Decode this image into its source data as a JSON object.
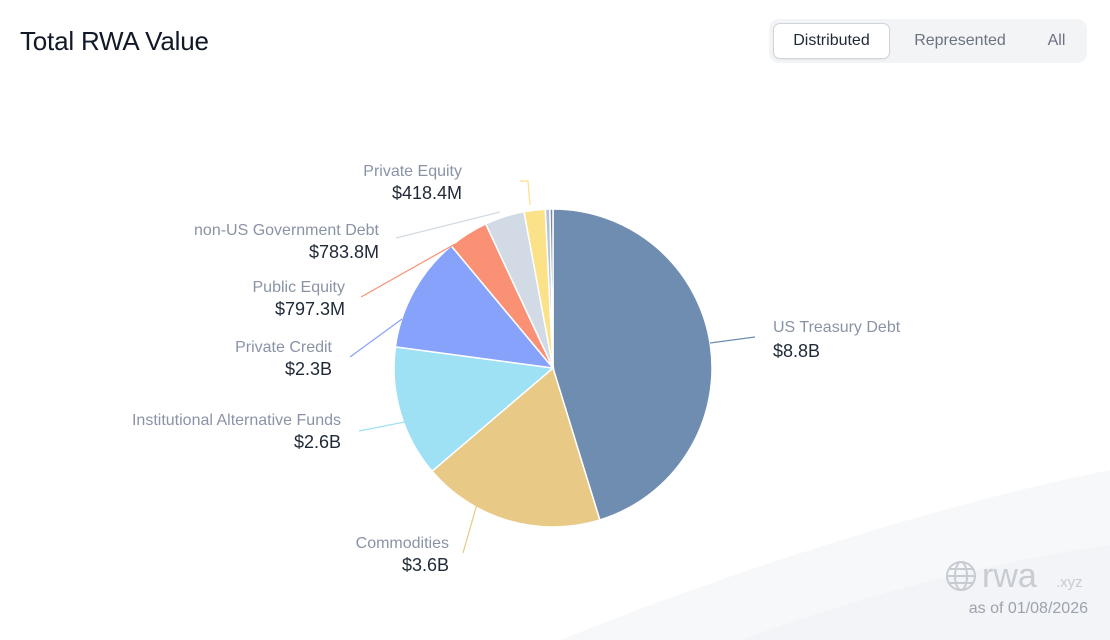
{
  "header": {
    "title": "Total RWA Value"
  },
  "tabs": [
    {
      "label": "Distributed",
      "active": true
    },
    {
      "label": "Represented",
      "active": false
    },
    {
      "label": "All",
      "active": false
    }
  ],
  "chart_data": {
    "type": "pie",
    "title": "Total RWA Value",
    "unit": "USD",
    "slices": [
      {
        "name": "US Treasury Debt",
        "label": "$8.8B",
        "value": 8.8,
        "color": "#6f8db0"
      },
      {
        "name": "Commodities",
        "label": "$3.6B",
        "value": 3.6,
        "color": "#e8c985"
      },
      {
        "name": "Institutional Alternative Funds",
        "label": "$2.6B",
        "value": 2.6,
        "color": "#9ee0f4"
      },
      {
        "name": "Private Credit",
        "label": "$2.3B",
        "value": 2.3,
        "color": "#86a2fa"
      },
      {
        "name": "Public Equity",
        "label": "$797.3M",
        "value": 0.7973,
        "color": "#fb9174"
      },
      {
        "name": "non-US Government Debt",
        "label": "$783.8M",
        "value": 0.7838,
        "color": "#d2dae5"
      },
      {
        "name": "Private Equity",
        "label": "$418.4M",
        "value": 0.4184,
        "color": "#fbe187"
      },
      {
        "name": "",
        "label": "",
        "value": 0.09,
        "color": "#b3c3dc"
      },
      {
        "name": "",
        "label": "",
        "value": 0.06,
        "color": "#7688a8"
      }
    ]
  },
  "branding": {
    "name": "rwa",
    "tld": ".xyz",
    "as_of": "as of 01/08/2026"
  }
}
